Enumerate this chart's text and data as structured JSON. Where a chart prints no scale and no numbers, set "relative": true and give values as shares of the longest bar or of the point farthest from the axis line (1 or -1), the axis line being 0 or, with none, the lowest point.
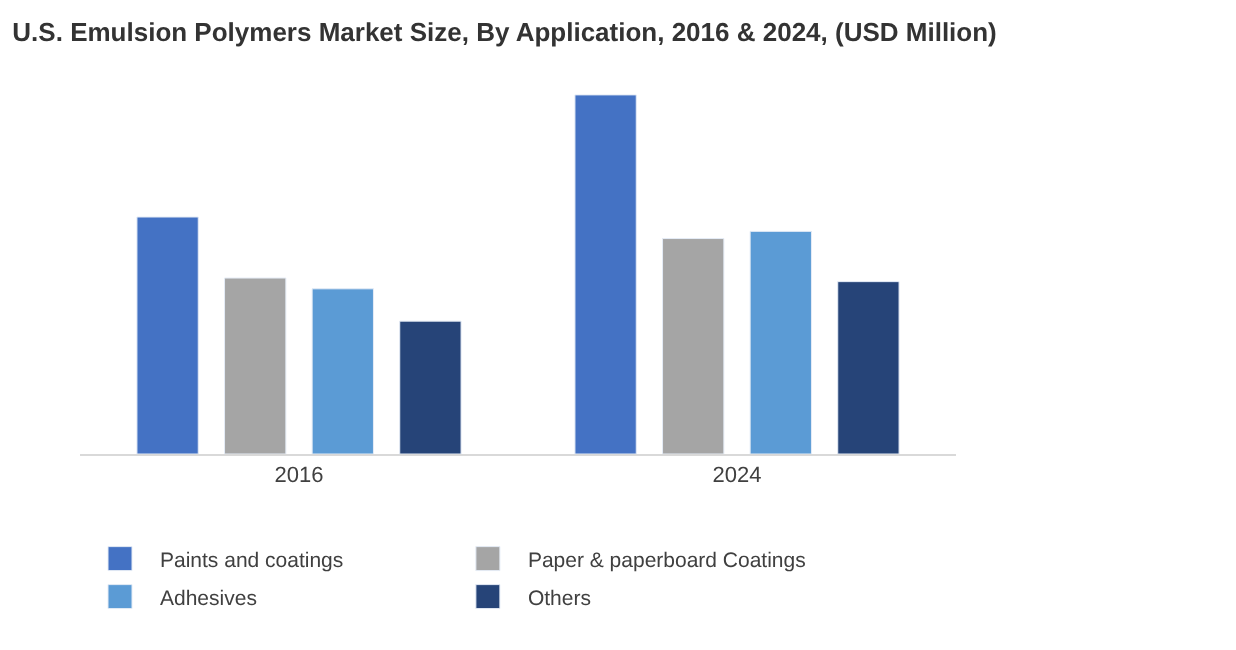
{
  "chart_data": {
    "type": "bar",
    "title": "U.S. Emulsion Polymers Market Size, By Application, 2016 & 2024, (USD Million)",
    "categories": [
      "2016",
      "2024"
    ],
    "relative": true,
    "legend": "bottom",
    "series": [
      {
        "name": "Paints and coatings",
        "color": "#4472c4",
        "values": [
          0.66,
          1
        ]
      },
      {
        "name": "Paper & paperboard Coatings",
        "color": "#a5a5a5",
        "values": [
          0.49,
          0.6
        ]
      },
      {
        "name": "Adhesives",
        "color": "#5b9bd5",
        "values": [
          0.46,
          0.62
        ]
      },
      {
        "name": "Others",
        "color": "#264478",
        "values": [
          0.37,
          0.48
        ]
      }
    ]
  }
}
